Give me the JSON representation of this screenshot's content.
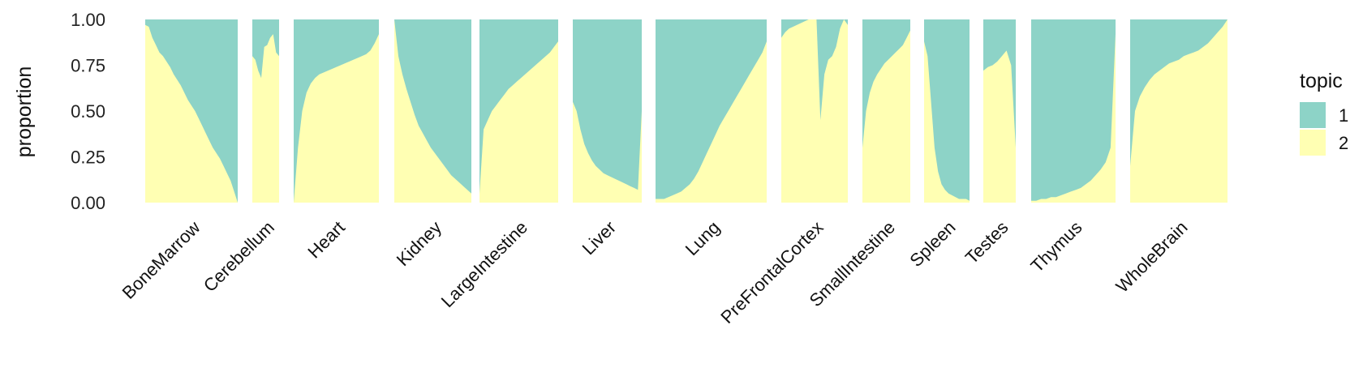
{
  "chart_data": {
    "type": "area",
    "ylabel": "proportion",
    "ylim": [
      0,
      1
    ],
    "y_ticks": [
      "0.00",
      "0.25",
      "0.50",
      "0.75",
      "1.00"
    ],
    "grid": false,
    "legend": {
      "title": "topic",
      "placement": "right",
      "entries": [
        {
          "label": "1",
          "color": "#8DD3C7"
        },
        {
          "label": "2",
          "color": "#FFFFB3"
        }
      ]
    },
    "series_note": "y values are the proportion of topic 2 (yellow, bottom); topic 1 fills the remainder to 1.0",
    "groups": [
      {
        "name": "BoneMarrow",
        "topic2": [
          0.97,
          0.96,
          0.9,
          0.86,
          0.82,
          0.8,
          0.77,
          0.74,
          0.7,
          0.67,
          0.64,
          0.6,
          0.56,
          0.53,
          0.5,
          0.46,
          0.42,
          0.38,
          0.34,
          0.3,
          0.27,
          0.24,
          0.2,
          0.16,
          0.12,
          0.06,
          0.0
        ]
      },
      {
        "name": "Cerebellum",
        "topic2": [
          0.8,
          0.78,
          0.72,
          0.68,
          0.85,
          0.86,
          0.9,
          0.92,
          0.82,
          0.8
        ]
      },
      {
        "name": "Heart",
        "topic2": [
          0.0,
          0.3,
          0.5,
          0.6,
          0.65,
          0.68,
          0.7,
          0.71,
          0.72,
          0.73,
          0.74,
          0.75,
          0.76,
          0.77,
          0.78,
          0.79,
          0.8,
          0.81,
          0.83,
          0.87,
          0.92
        ]
      },
      {
        "name": "Kidney",
        "topic2": [
          1.0,
          0.8,
          0.7,
          0.62,
          0.55,
          0.48,
          0.42,
          0.38,
          0.34,
          0.3,
          0.27,
          0.24,
          0.21,
          0.18,
          0.15,
          0.13,
          0.11,
          0.09,
          0.07,
          0.05
        ]
      },
      {
        "name": "LargeIntestine",
        "topic2": [
          0.05,
          0.4,
          0.45,
          0.5,
          0.53,
          0.56,
          0.59,
          0.62,
          0.64,
          0.66,
          0.68,
          0.7,
          0.72,
          0.74,
          0.76,
          0.78,
          0.8,
          0.82,
          0.85,
          0.88
        ]
      },
      {
        "name": "Liver",
        "topic2": [
          0.55,
          0.5,
          0.4,
          0.32,
          0.27,
          0.23,
          0.2,
          0.18,
          0.16,
          0.15,
          0.14,
          0.13,
          0.12,
          0.11,
          0.1,
          0.09,
          0.08,
          0.07,
          0.5
        ]
      },
      {
        "name": "Lung",
        "topic2": [
          0.02,
          0.02,
          0.02,
          0.03,
          0.04,
          0.05,
          0.06,
          0.08,
          0.1,
          0.13,
          0.17,
          0.22,
          0.27,
          0.32,
          0.37,
          0.42,
          0.46,
          0.5,
          0.54,
          0.58,
          0.62,
          0.66,
          0.7,
          0.74,
          0.78,
          0.82,
          0.88
        ]
      },
      {
        "name": "PreFrontalCortex",
        "topic2": [
          0.9,
          0.93,
          0.95,
          0.96,
          0.97,
          0.98,
          0.99,
          1.0,
          1.0,
          1.0,
          0.45,
          0.7,
          0.78,
          0.8,
          0.85,
          0.95,
          1.0,
          0.97
        ]
      },
      {
        "name": "SmallIntestine",
        "topic2": [
          0.3,
          0.5,
          0.6,
          0.66,
          0.7,
          0.73,
          0.76,
          0.78,
          0.8,
          0.82,
          0.84,
          0.86,
          0.9,
          0.94
        ]
      },
      {
        "name": "Spleen",
        "topic2": [
          0.88,
          0.8,
          0.55,
          0.3,
          0.17,
          0.1,
          0.07,
          0.05,
          0.04,
          0.03,
          0.02,
          0.02,
          0.02,
          0.01
        ]
      },
      {
        "name": "Testes",
        "topic2": [
          0.72,
          0.74,
          0.75,
          0.77,
          0.8,
          0.83,
          0.75,
          0.3
        ]
      },
      {
        "name": "Thymus",
        "topic2": [
          0.01,
          0.01,
          0.02,
          0.02,
          0.03,
          0.03,
          0.04,
          0.05,
          0.06,
          0.07,
          0.08,
          0.1,
          0.12,
          0.15,
          0.18,
          0.22,
          0.3,
          0.92
        ]
      },
      {
        "name": "WholeBrain",
        "topic2": [
          0.2,
          0.5,
          0.58,
          0.63,
          0.67,
          0.7,
          0.72,
          0.74,
          0.76,
          0.77,
          0.78,
          0.8,
          0.81,
          0.82,
          0.83,
          0.85,
          0.87,
          0.9,
          0.93,
          0.96,
          1.0
        ]
      }
    ]
  }
}
